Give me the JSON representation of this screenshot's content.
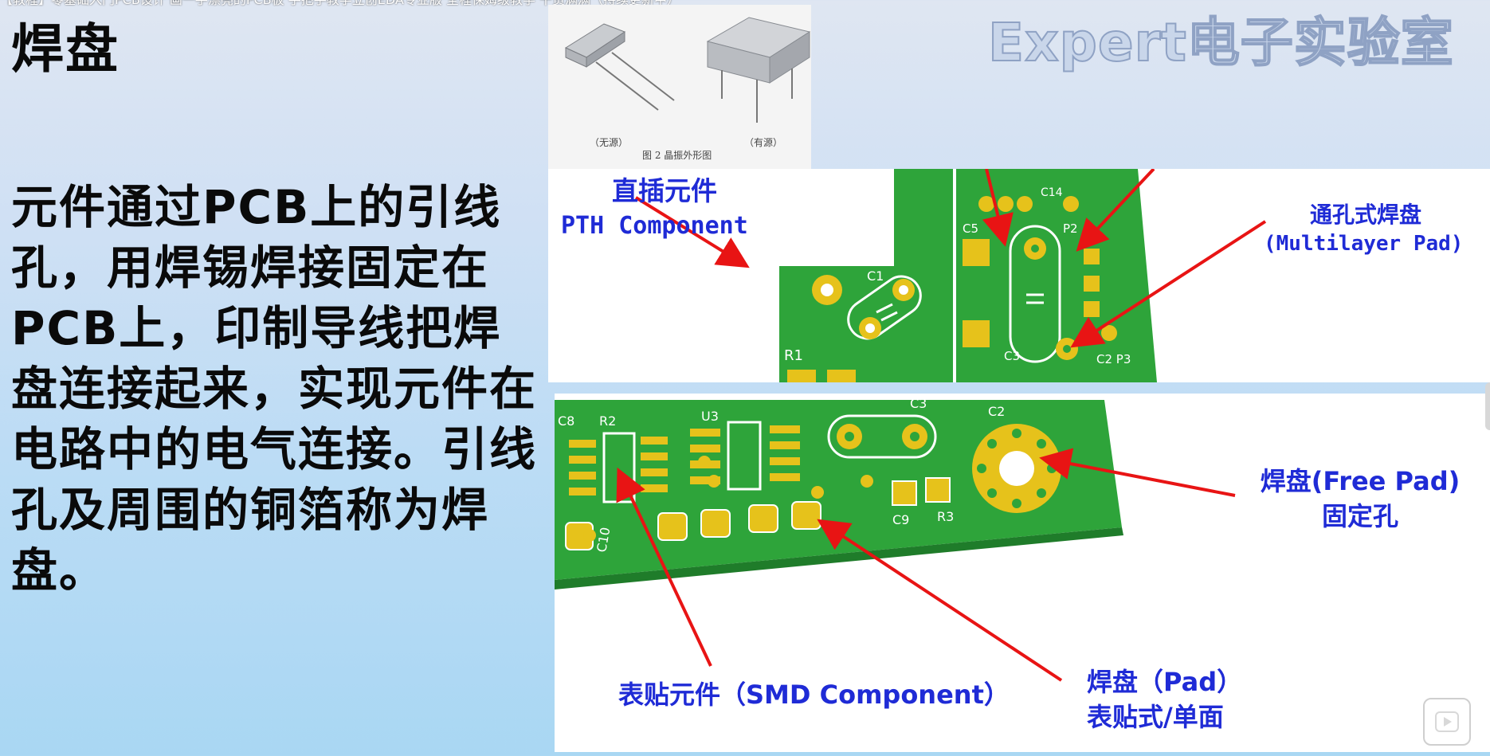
{
  "video_title": "【教程】零基础入门PCB设计 画一手漂亮的PCB板 手把手教学立创EDA专业版 全程保姆级教学 干货满满（持续更新中）",
  "heading": "焊盘",
  "watermark": "Expert电子实验室",
  "body_text": "元件通过PCB上的引线孔，用焊锡焊接固定在PCB上，印制导线把焊盘连接起来，实现元件在电路中的电气连接。引线孔及周围的铜箔称为焊盘。",
  "crystal_figure": {
    "left_caption": "（无源）",
    "right_caption": "（有源）",
    "figure_caption": "图 2   晶振外形图"
  },
  "labels": {
    "pth_cn": "直插元件",
    "pth_en": "PTH Component",
    "multilayer_cn": "通孔式焊盘",
    "multilayer_en": "(Multilayer Pad)",
    "free_pad_line1": "焊盘(Free Pad)",
    "free_pad_line2": "固定孔",
    "smd": "表贴元件（SMD Component）",
    "pad_line1": "焊盘（Pad）",
    "pad_line2": "表贴式/单面"
  },
  "silkscreen": {
    "top": [
      "C1",
      "R1",
      "C5",
      "C4",
      "P2",
      "C3",
      "C2",
      "P3",
      "C14"
    ],
    "bottom": [
      "C8",
      "R2",
      "U3",
      "C3",
      "C2",
      "C10",
      "C9",
      "R3"
    ]
  },
  "colors": {
    "pcb_green": "#2ea43a",
    "pad_gold": "#e6c21b",
    "arrow_red": "#e81414",
    "label_blue": "#1f2bd6"
  },
  "icons": [
    "play-icon"
  ]
}
